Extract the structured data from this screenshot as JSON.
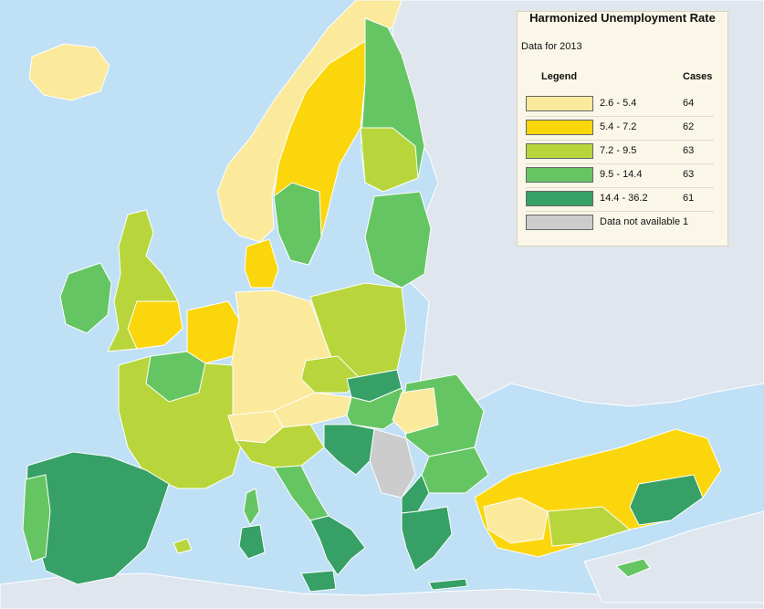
{
  "legend": {
    "title": "Harmonized Unemployment Rate",
    "subtitle": "Data for 2013",
    "col_legend": "Legend",
    "col_cases": "Cases",
    "items": [
      {
        "range": "2.6 - 5.4",
        "cases": "64",
        "color": "#fbe99c"
      },
      {
        "range": "5.4 - 7.2",
        "cases": "62",
        "color": "#fbd60d"
      },
      {
        "range": "7.2 - 9.5",
        "cases": "63",
        "color": "#b8d63b"
      },
      {
        "range": "9.5 - 14.4",
        "cases": "63",
        "color": "#66c563"
      },
      {
        "range": "14.4 - 36.2",
        "cases": "61",
        "color": "#36a066"
      },
      {
        "range": "Data not available",
        "cases": "1",
        "color": "#cccccc"
      }
    ]
  },
  "map": {
    "sea_color": "#bfe0f5",
    "non_data_land_color": "#dfe6ee",
    "border_color": "#ffffff"
  }
}
